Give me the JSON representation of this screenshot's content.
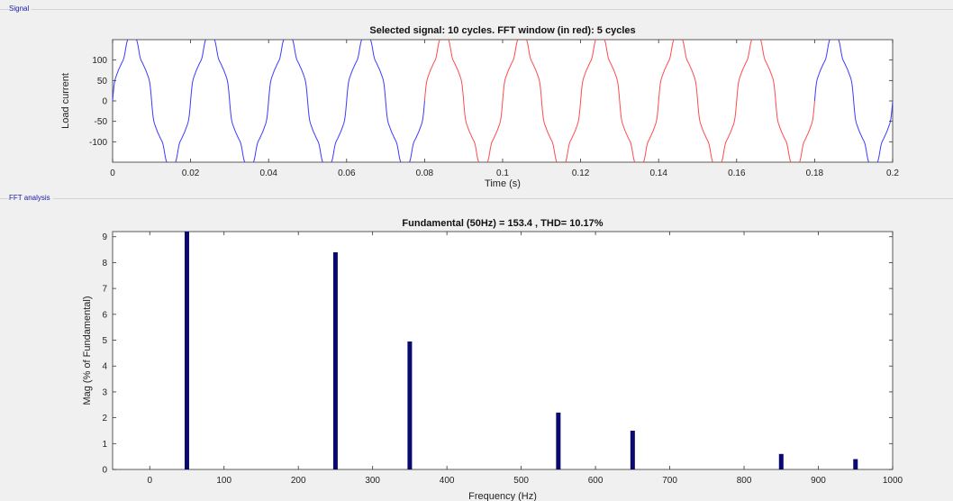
{
  "panels": {
    "signal_label": "Signal",
    "fft_label": "FFT analysis"
  },
  "colors": {
    "selected_signal": "#3a3aff",
    "fft_window": "#ff4a4a",
    "bars": "#0a0a6e",
    "panel_label": "#1a1aa6"
  },
  "chart_data": [
    {
      "type": "line",
      "title": "Selected signal: 10 cycles. FFT window (in red): 5 cycles",
      "xlabel": "Time (s)",
      "ylabel": "Load current",
      "xlim": [
        0,
        0.2
      ],
      "ylim": [
        -150,
        150
      ],
      "x_ticks": [
        0,
        0.02,
        0.04,
        0.06,
        0.08,
        0.1,
        0.12,
        0.14,
        0.16,
        0.18,
        0.2
      ],
      "x_tick_labels": [
        "0",
        "0.02",
        "0.04",
        "0.06",
        "0.08",
        "0.1",
        "0.12",
        "0.14",
        "0.16",
        "0.18",
        "0.2"
      ],
      "y_ticks": [
        100,
        50,
        0,
        -50,
        -100
      ],
      "y_tick_labels": [
        "100",
        "50",
        "0",
        "-50",
        "-100"
      ],
      "grid": false,
      "series": [
        {
          "fundamental_hz": 50,
          "amplitude": 153.4,
          "harmonic_pct": {
            "5": 8.4,
            "7": 4.95,
            "11": 2.2,
            "13": 1.5,
            "17": 0.6,
            "19": 0.4
          },
          "segments": [
            {
              "x_start": 0,
              "x_end": 0.08,
              "color": "#3a3aff"
            },
            {
              "x_start": 0.08,
              "x_end": 0.18,
              "color": "#ff4a4a"
            },
            {
              "x_start": 0.18,
              "x_end": 0.2,
              "color": "#3a3aff"
            }
          ]
        }
      ]
    },
    {
      "type": "bar",
      "title": "Fundamental (50Hz) = 153.4 , THD= 10.17%",
      "xlabel": "Frequency (Hz)",
      "ylabel": "Mag (% of Fundamental)",
      "xlim": [
        -50,
        1000
      ],
      "ylim": [
        0,
        9.2
      ],
      "x_ticks": [
        0,
        100,
        200,
        300,
        400,
        500,
        600,
        700,
        800,
        900,
        1000
      ],
      "x_tick_labels": [
        "0",
        "100",
        "200",
        "300",
        "400",
        "500",
        "600",
        "700",
        "800",
        "900",
        "1000"
      ],
      "y_ticks": [
        0,
        1,
        2,
        3,
        4,
        5,
        6,
        7,
        8,
        9
      ],
      "y_tick_labels": [
        "0",
        "1",
        "2",
        "3",
        "4",
        "5",
        "6",
        "7",
        "8",
        "9"
      ],
      "grid": false,
      "x": [
        50,
        250,
        350,
        550,
        650,
        850,
        950
      ],
      "values": [
        9.2,
        8.4,
        4.95,
        2.2,
        1.5,
        0.6,
        0.4
      ]
    }
  ]
}
